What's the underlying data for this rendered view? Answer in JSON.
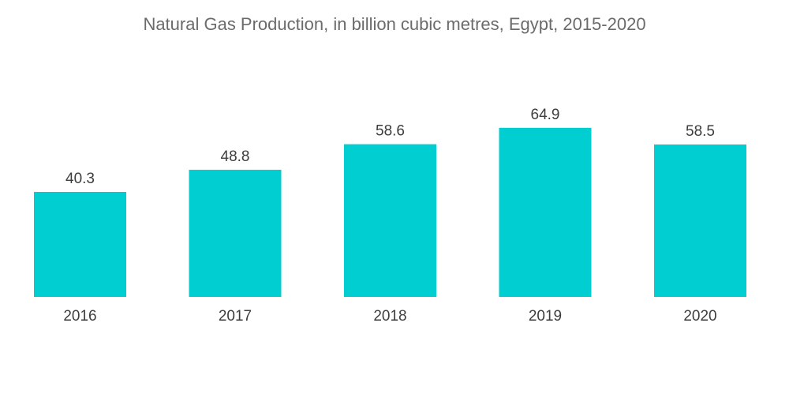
{
  "chart_data": {
    "type": "bar",
    "title": "Natural Gas Production, in billion cubic metres, Egypt, 2015-2020",
    "xlabel": "",
    "ylabel": "",
    "categories": [
      "2016",
      "2017",
      "2018",
      "2019",
      "2020"
    ],
    "values": [
      40.3,
      48.8,
      58.6,
      64.9,
      58.5
    ],
    "value_labels": [
      "40.3",
      "48.8",
      "58.6",
      "64.9",
      "58.5"
    ],
    "ylim": [
      0,
      70
    ],
    "grid": false,
    "legend": "none",
    "bar_color": "#00CED1"
  }
}
